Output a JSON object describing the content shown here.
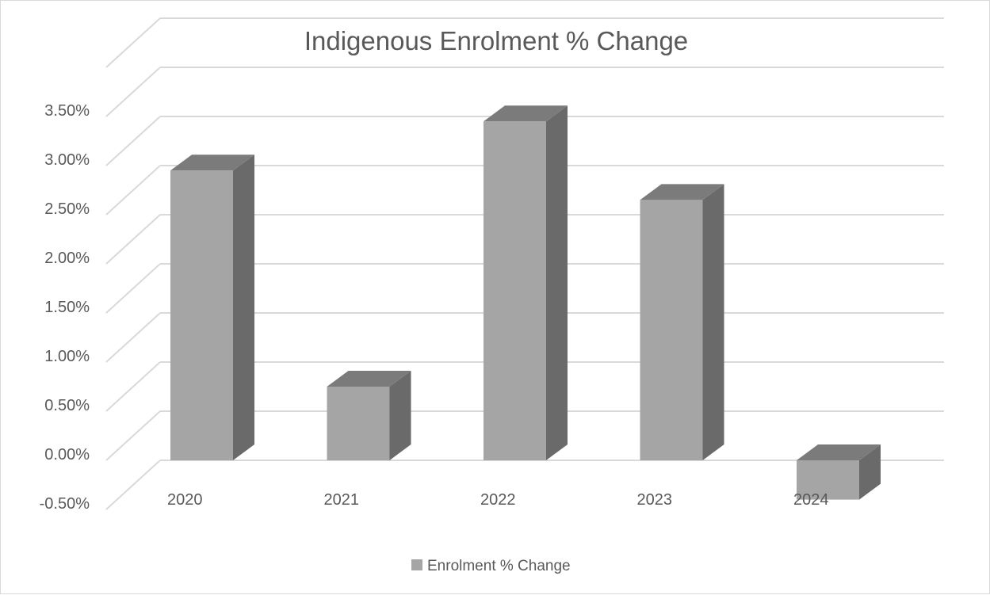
{
  "chart_data": {
    "type": "bar",
    "title": "Indigenous Enrolment % Change",
    "categories": [
      "2020",
      "2021",
      "2022",
      "2023",
      "2024"
    ],
    "series": [
      {
        "name": "Enrolment % Change",
        "values": [
          2.95,
          0.75,
          3.45,
          2.65,
          -0.4
        ]
      }
    ],
    "y_ticks": [
      "-0.50%",
      "0.00%",
      "0.50%",
      "1.00%",
      "1.50%",
      "2.00%",
      "2.50%",
      "3.00%",
      "3.50%"
    ],
    "ylim": [
      -0.5,
      4.0
    ],
    "grid": true,
    "legend": "bottom",
    "style": "3d-column",
    "colors": {
      "front": "#a5a5a5",
      "top": "#7b7b7b",
      "side": "#6a6a6a",
      "grid": "#d9d9d9",
      "text": "#595959"
    }
  }
}
